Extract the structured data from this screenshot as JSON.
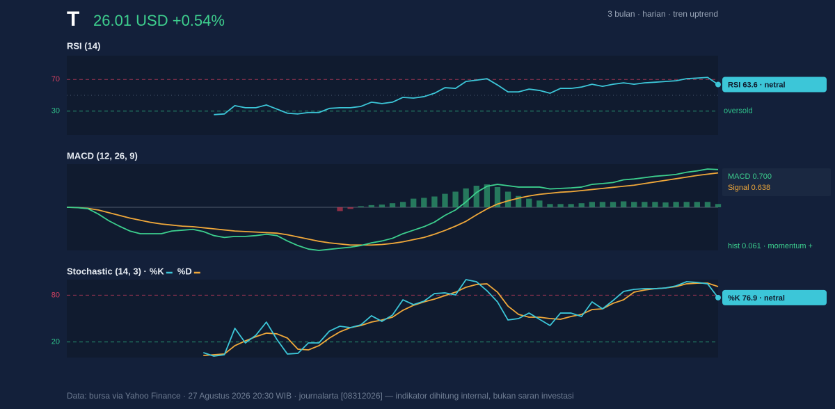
{
  "header": {
    "ticker": "T",
    "price": "26.01 USD +0.54%",
    "meta": "3 bulan · harian · tren uptrend"
  },
  "chart_data": [
    {
      "type": "line",
      "title": "RSI (14)",
      "ylim": [
        0,
        100
      ],
      "yticks": [
        30,
        70
      ],
      "ref_colors": [
        "#2fbf8a",
        "#d04060"
      ],
      "midline": 50,
      "band_label": "oversold",
      "callout": "RSI 63.6 · netral",
      "series": [
        {
          "color": "#3cc6d8",
          "values": [
            null,
            null,
            null,
            null,
            null,
            null,
            null,
            null,
            null,
            null,
            null,
            null,
            null,
            null,
            25.6,
            26.5,
            37,
            34.3,
            34.3,
            37.8,
            32.6,
            27.4,
            26.5,
            28.3,
            28.3,
            33.5,
            34.3,
            34.3,
            36,
            41.3,
            39.6,
            41.3,
            47.4,
            46.5,
            48.3,
            52.6,
            59.6,
            58.7,
            67.4,
            69.1,
            70.9,
            63,
            54.3,
            54.3,
            57.8,
            56.1,
            52.6,
            58.7,
            58.7,
            60.4,
            63.9,
            61.3,
            63.9,
            65.7,
            63.9,
            65.7,
            66.5,
            67.4,
            68.3,
            70.9,
            71.7,
            72.6,
            63.6
          ]
        }
      ]
    },
    {
      "type": "macd",
      "title": "MACD (12, 26, 9)",
      "ylim": [
        -0.8,
        0.8
      ],
      "hist_label": "hist 0.061 · momentum +",
      "series": [
        {
          "name": "MACD",
          "last_label": "MACD 0.700",
          "color": "#3ccf8e",
          "values": [
            0,
            -0.006,
            -0.025,
            -0.125,
            -0.25,
            -0.35,
            -0.44,
            -0.49,
            -0.49,
            -0.49,
            -0.44,
            -0.425,
            -0.41,
            -0.45,
            -0.525,
            -0.56,
            -0.54,
            -0.54,
            -0.525,
            -0.5,
            -0.525,
            -0.625,
            -0.71,
            -0.775,
            -0.8,
            -0.78,
            -0.76,
            -0.74,
            -0.71,
            -0.66,
            -0.625,
            -0.575,
            -0.49,
            -0.425,
            -0.36,
            -0.275,
            -0.15,
            -0.05,
            0.1,
            0.275,
            0.39,
            0.425,
            0.4,
            0.375,
            0.375,
            0.375,
            0.34,
            0.35,
            0.36,
            0.375,
            0.425,
            0.44,
            0.46,
            0.51,
            0.525,
            0.55,
            0.575,
            0.59,
            0.61,
            0.65,
            0.675,
            0.71,
            0.7
          ]
        },
        {
          "name": "Signal",
          "last_label": "Signal 0.638",
          "color": "#f0a83a",
          "values": [
            0,
            -0.005,
            -0.02,
            -0.05,
            -0.1,
            -0.15,
            -0.2,
            -0.24,
            -0.28,
            -0.31,
            -0.33,
            -0.35,
            -0.36,
            -0.38,
            -0.4,
            -0.42,
            -0.44,
            -0.45,
            -0.46,
            -0.47,
            -0.48,
            -0.51,
            -0.55,
            -0.59,
            -0.63,
            -0.66,
            -0.68,
            -0.7,
            -0.7,
            -0.7,
            -0.69,
            -0.67,
            -0.64,
            -0.6,
            -0.56,
            -0.5,
            -0.43,
            -0.35,
            -0.26,
            -0.14,
            -0.03,
            0.06,
            0.12,
            0.17,
            0.21,
            0.24,
            0.26,
            0.28,
            0.29,
            0.31,
            0.33,
            0.35,
            0.37,
            0.39,
            0.41,
            0.44,
            0.47,
            0.5,
            0.53,
            0.56,
            0.59,
            0.615,
            0.638
          ]
        }
      ],
      "histogram": {
        "positive_color": "#2e9a6e",
        "negative_color": "#b8354f",
        "values": [
          null,
          null,
          null,
          null,
          null,
          null,
          null,
          null,
          null,
          null,
          null,
          null,
          null,
          null,
          null,
          null,
          null,
          null,
          null,
          null,
          null,
          null,
          null,
          null,
          null,
          null,
          -0.07,
          -0.03,
          0.02,
          0.04,
          0.05,
          0.075,
          0.1,
          0.16,
          0.175,
          0.2,
          0.25,
          0.29,
          0.35,
          0.4,
          0.425,
          0.375,
          0.29,
          0.21,
          0.16,
          0.125,
          0.06,
          0.06,
          0.06,
          0.075,
          0.1,
          0.1,
          0.1,
          0.11,
          0.1,
          0.1,
          0.1,
          0.09,
          0.1,
          0.1,
          0.1,
          0.1,
          0.061
        ]
      }
    },
    {
      "type": "line",
      "title": "Stochastic (14, 3) ·",
      "ylim": [
        0,
        100
      ],
      "yticks": [
        20,
        80
      ],
      "ref_colors": [
        "#2fbf8a",
        "#d04060"
      ],
      "callout": "%K 76.9 · netral",
      "series": [
        {
          "name": "%K",
          "color": "#3cc6d8",
          "values": [
            null,
            null,
            null,
            null,
            null,
            null,
            null,
            null,
            null,
            null,
            null,
            null,
            null,
            6.3,
            1.8,
            3.6,
            37.5,
            18.75,
            28.6,
            45.5,
            23.2,
            4.5,
            5.4,
            18.75,
            18.75,
            33.9,
            40.2,
            38.4,
            42,
            53.6,
            46.4,
            54.5,
            74.1,
            67.9,
            72.3,
            82.1,
            83,
            80.4,
            100,
            97.3,
            85.7,
            71.4,
            48.2,
            50,
            57.1,
            49.1,
            41.1,
            57.1,
            57.1,
            52.7,
            71.4,
            62.5,
            73.2,
            84.8,
            87.5,
            88.4,
            88.4,
            89.3,
            92,
            97.3,
            96.4,
            94.6,
            76.9
          ]
        },
        {
          "name": "%D",
          "color": "#f0a83a",
          "values": [
            null,
            null,
            null,
            null,
            null,
            null,
            null,
            null,
            null,
            null,
            null,
            null,
            null,
            2.7,
            3.6,
            4.5,
            15.2,
            21.4,
            26.8,
            31.3,
            30.4,
            25,
            10.7,
            9.8,
            15.2,
            25,
            33,
            38.4,
            41.1,
            45.5,
            48.2,
            51.8,
            60.7,
            67,
            71.4,
            75,
            79.5,
            83.9,
            90.2,
            93.8,
            94.6,
            83.9,
            66,
            55.4,
            51.8,
            51.8,
            50,
            49.1,
            52.7,
            55.4,
            61.6,
            62.5,
            69.6,
            74.1,
            83.9,
            86.6,
            88.4,
            89.3,
            91.1,
            94.6,
            95.5,
            95.5,
            91.1
          ]
        }
      ]
    }
  ],
  "footer": "Data: bursa via Yahoo Finance · 27 Agustus 2026 20:30 WIB · journalarta [08312026] — indikator dihitung internal, bukan saran investasi"
}
